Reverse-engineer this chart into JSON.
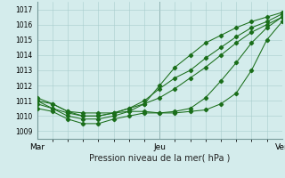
{
  "xlabel": "Pression niveau de la mer( hPa )",
  "bg_color": "#d4ecec",
  "grid_color": "#a8cccc",
  "line_color": "#1a6e1a",
  "xlim": [
    0,
    48
  ],
  "ylim": [
    1008.5,
    1017.5
  ],
  "yticks": [
    1009,
    1010,
    1011,
    1012,
    1013,
    1014,
    1015,
    1016,
    1017
  ],
  "xtick_positions": [
    0,
    24,
    48
  ],
  "xtick_labels": [
    "Mar",
    "Jeu",
    "Ven"
  ],
  "series": [
    [
      1011.0,
      1010.8,
      1010.3,
      1010.2,
      1010.2,
      1010.2,
      1010.3,
      1010.3,
      1010.2,
      1010.2,
      1010.3,
      1010.4,
      1010.8,
      1011.5,
      1013.0,
      1015.0,
      1016.2
    ],
    [
      1010.5,
      1010.3,
      1009.8,
      1009.5,
      1009.5,
      1009.8,
      1010.0,
      1010.2,
      1010.2,
      1010.3,
      1010.5,
      1011.2,
      1012.3,
      1013.5,
      1014.8,
      1015.8,
      1016.5
    ],
    [
      1010.8,
      1010.5,
      1010.2,
      1010.0,
      1010.0,
      1010.2,
      1010.5,
      1010.8,
      1011.2,
      1011.8,
      1012.5,
      1013.2,
      1014.0,
      1014.8,
      1015.5,
      1016.0,
      1016.5
    ],
    [
      1011.2,
      1010.8,
      1010.3,
      1010.0,
      1010.0,
      1010.2,
      1010.5,
      1011.0,
      1011.8,
      1012.5,
      1013.0,
      1013.8,
      1014.5,
      1015.2,
      1015.8,
      1016.2,
      1016.7
    ],
    [
      1011.0,
      1010.5,
      1010.0,
      1009.8,
      1009.8,
      1010.0,
      1010.3,
      1010.8,
      1012.0,
      1013.2,
      1014.0,
      1014.8,
      1015.3,
      1015.8,
      1016.2,
      1016.5,
      1016.8
    ]
  ],
  "x_points": [
    0,
    3,
    6,
    9,
    12,
    15,
    18,
    21,
    24,
    27,
    30,
    33,
    36,
    39,
    42,
    45,
    48
  ]
}
